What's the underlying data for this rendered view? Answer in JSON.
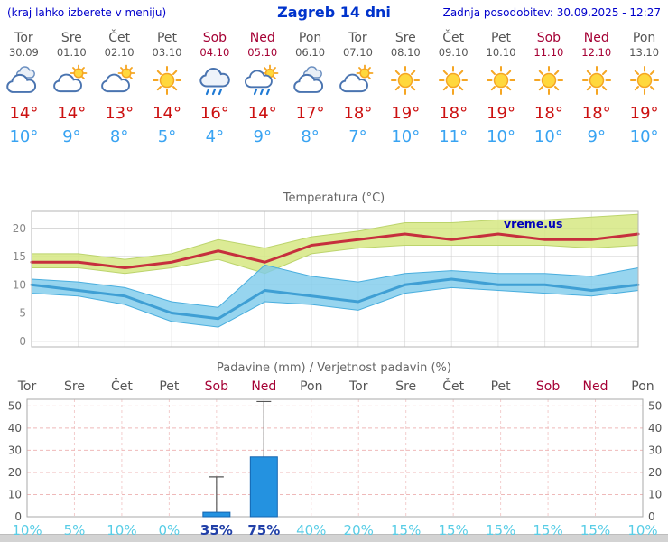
{
  "header": {
    "note": "(kraj lahko izberete v meniju)",
    "title": "Zagreb 14 dni",
    "updated": "Zadnja posodobitev: 30.09.2025 - 12:27"
  },
  "colors": {
    "weekday": "#555555",
    "weekend": "#a50034",
    "tmax_text": "#cc1111",
    "tmin_text": "#38a3f2",
    "prob_light": "#58cde6",
    "prob_dark": "#2140a8",
    "watermark": "#0000bb"
  },
  "days": [
    {
      "name": "Tor",
      "date": "30.09",
      "weekend": false,
      "icon": "cloudy",
      "tmax": "14°",
      "tmin": "10°",
      "prob": "10%",
      "prob_dark": false
    },
    {
      "name": "Sre",
      "date": "01.10",
      "weekend": false,
      "icon": "sun-cloud",
      "tmax": "14°",
      "tmin": "9°",
      "prob": "5%",
      "prob_dark": false
    },
    {
      "name": "Čet",
      "date": "02.10",
      "weekend": false,
      "icon": "sun-cloud",
      "tmax": "13°",
      "tmin": "8°",
      "prob": "10%",
      "prob_dark": false
    },
    {
      "name": "Pet",
      "date": "03.10",
      "weekend": false,
      "icon": "sunny",
      "tmax": "14°",
      "tmin": "5°",
      "prob": "0%",
      "prob_dark": false
    },
    {
      "name": "Sob",
      "date": "04.10",
      "weekend": true,
      "icon": "rain",
      "tmax": "16°",
      "tmin": "4°",
      "prob": "35%",
      "prob_dark": true
    },
    {
      "name": "Ned",
      "date": "05.10",
      "weekend": true,
      "icon": "rain-sun",
      "tmax": "14°",
      "tmin": "9°",
      "prob": "75%",
      "prob_dark": true
    },
    {
      "name": "Pon",
      "date": "06.10",
      "weekend": false,
      "icon": "cloudy",
      "tmax": "17°",
      "tmin": "8°",
      "prob": "40%",
      "prob_dark": false
    },
    {
      "name": "Tor",
      "date": "07.10",
      "weekend": false,
      "icon": "sun-cloud",
      "tmax": "18°",
      "tmin": "7°",
      "prob": "20%",
      "prob_dark": false
    },
    {
      "name": "Sre",
      "date": "08.10",
      "weekend": false,
      "icon": "sunny",
      "tmax": "19°",
      "tmin": "10°",
      "prob": "15%",
      "prob_dark": false
    },
    {
      "name": "Čet",
      "date": "09.10",
      "weekend": false,
      "icon": "sunny",
      "tmax": "18°",
      "tmin": "11°",
      "prob": "15%",
      "prob_dark": false
    },
    {
      "name": "Pet",
      "date": "10.10",
      "weekend": false,
      "icon": "sunny",
      "tmax": "19°",
      "tmin": "10°",
      "prob": "15%",
      "prob_dark": false
    },
    {
      "name": "Sob",
      "date": "11.10",
      "weekend": true,
      "icon": "sunny",
      "tmax": "18°",
      "tmin": "10°",
      "prob": "15%",
      "prob_dark": false
    },
    {
      "name": "Ned",
      "date": "12.10",
      "weekend": true,
      "icon": "sunny",
      "tmax": "18°",
      "tmin": "9°",
      "prob": "15%",
      "prob_dark": false
    },
    {
      "name": "Pon",
      "date": "13.10",
      "weekend": false,
      "icon": "sunny",
      "tmax": "19°",
      "tmin": "10°",
      "prob": "10%",
      "prob_dark": false
    }
  ],
  "chart_data": [
    {
      "type": "line",
      "title": "Temperatura (°C)",
      "watermark": "vreme.us",
      "x": [
        "Tor",
        "Sre",
        "Čet",
        "Pet",
        "Sob",
        "Ned",
        "Pon",
        "Tor",
        "Sre",
        "Čet",
        "Pet",
        "Sob",
        "Ned",
        "Pon"
      ],
      "yticks": [
        0,
        5,
        10,
        15,
        20
      ],
      "ylim": [
        -1,
        23
      ],
      "grid": true,
      "series": [
        {
          "name": "tmax",
          "color": "#c62f3d",
          "values": [
            14,
            14,
            13,
            14,
            16,
            14,
            17,
            18,
            19,
            18,
            19,
            18,
            18,
            19
          ]
        },
        {
          "name": "tmin",
          "color": "#3f9fd4",
          "values": [
            10,
            9,
            8,
            5,
            4,
            9,
            8,
            7,
            10,
            11,
            10,
            10,
            9,
            10
          ]
        }
      ],
      "bands": [
        {
          "name": "tmax-range-band",
          "color": "rgba(214,232,130,0.85)",
          "edge": "#bcd46c",
          "upper": [
            15.5,
            15.5,
            14.5,
            15.5,
            18,
            16.5,
            18.5,
            19.5,
            21,
            21,
            21.5,
            21.5,
            22,
            22.5
          ],
          "lower": [
            13,
            13,
            12,
            13,
            14.5,
            12,
            15.5,
            16.5,
            17,
            17,
            17,
            17,
            16.5,
            17
          ]
        },
        {
          "name": "tmin-range-band",
          "color": "rgba(125,203,235,0.8)",
          "edge": "#49aede",
          "upper": [
            11,
            10.5,
            9.5,
            7,
            6,
            13.5,
            11.5,
            10.5,
            12,
            12.5,
            12,
            12,
            11.5,
            13
          ],
          "lower": [
            8.5,
            8,
            6.5,
            3.5,
            2.5,
            7,
            6.5,
            5.5,
            8.5,
            9.5,
            9,
            8.5,
            8,
            9
          ]
        }
      ]
    },
    {
      "type": "bar",
      "title": "Padavine (mm) / Verjetnost padavin (%)",
      "x": [
        "Tor",
        "Sre",
        "Čet",
        "Pet",
        "Sob",
        "Ned",
        "Pon",
        "Tor",
        "Sre",
        "Čet",
        "Pet",
        "Sob",
        "Ned",
        "Pon"
      ],
      "yticks": [
        0,
        10,
        20,
        30,
        40,
        50
      ],
      "ylim": [
        0,
        53
      ],
      "grid": true,
      "bar_color": "#2492e0",
      "bars_mm": [
        0,
        0,
        0,
        0,
        2,
        27,
        0,
        0,
        0,
        0,
        0,
        0,
        0,
        0
      ],
      "range_max_mm": [
        0,
        0,
        0,
        0,
        18,
        52,
        0,
        0,
        0,
        0,
        0,
        0,
        0,
        0
      ],
      "probabilities": [
        "10%",
        "5%",
        "10%",
        "0%",
        "35%",
        "75%",
        "40%",
        "20%",
        "15%",
        "15%",
        "15%",
        "15%",
        "15%",
        "10%"
      ]
    }
  ]
}
